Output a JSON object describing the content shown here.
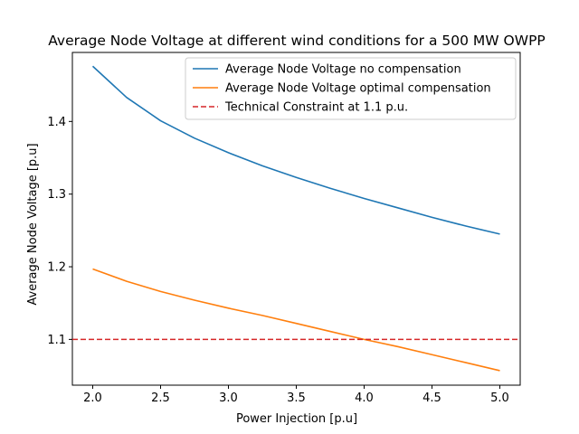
{
  "chart_data": {
    "type": "line",
    "title": "Average Node Voltage at different wind conditions for a 500 MW OWPP",
    "xlabel": "Power Injection [p.u]",
    "ylabel": "Average Node Voltage [p.u]",
    "xlim": [
      1.85,
      5.15
    ],
    "ylim": [
      1.037,
      1.495
    ],
    "xticks": [
      "2.0",
      "2.5",
      "3.0",
      "3.5",
      "4.0",
      "4.5",
      "5.0"
    ],
    "yticks": [
      "1.1",
      "1.2",
      "1.3",
      "1.4"
    ],
    "grid": false,
    "legend_position": "upper right",
    "x": [
      2.0,
      2.25,
      2.5,
      2.75,
      3.0,
      3.25,
      3.5,
      3.75,
      4.0,
      4.25,
      4.5,
      4.75,
      5.0
    ],
    "series": [
      {
        "name": "Average Node Voltage no compensation",
        "color": "#1f77b4",
        "style": "solid",
        "values": [
          1.476,
          1.433,
          1.401,
          1.377,
          1.357,
          1.339,
          1.323,
          1.308,
          1.294,
          1.281,
          1.268,
          1.256,
          1.245
        ]
      },
      {
        "name": "Average Node Voltage optimal compensation",
        "color": "#ff7f0e",
        "style": "solid",
        "values": [
          1.197,
          1.18,
          1.166,
          1.154,
          1.143,
          1.133,
          1.122,
          1.111,
          1.1,
          1.09,
          1.079,
          1.068,
          1.057
        ]
      },
      {
        "name": "Technical Constraint at 1.1 p.u.",
        "color": "#d62728",
        "style": "dashed",
        "constant": 1.1
      }
    ]
  }
}
